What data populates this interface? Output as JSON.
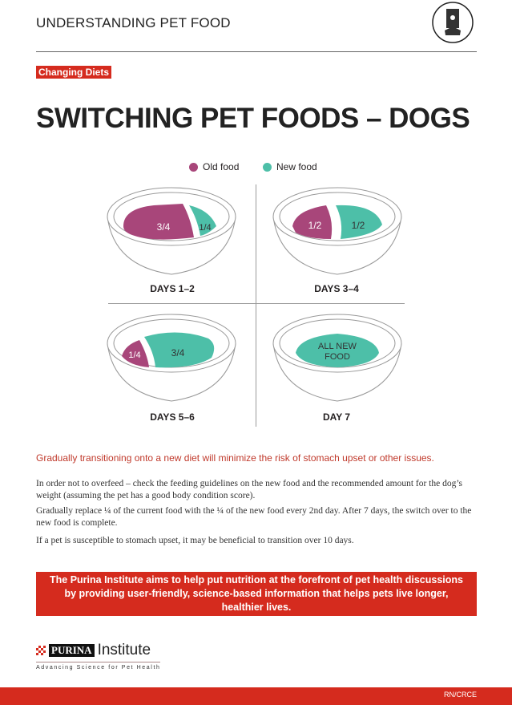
{
  "header": {
    "title": "UNDERSTANDING PET FOOD",
    "icon": "pet-food-bag-icon"
  },
  "tag": "Changing Diets",
  "title": "SWITCHING PET FOODS – DOGS",
  "legend": {
    "old": "Old food",
    "new": "New food",
    "old_color": "#a8467a",
    "new_color": "#4dbfa8"
  },
  "bowls": [
    {
      "label": "DAYS 1–2",
      "old": "3/4",
      "new": "1/4"
    },
    {
      "label": "DAYS 3–4",
      "old": "1/2",
      "new": "1/2"
    },
    {
      "label": "DAYS 5–6",
      "old": "1/4",
      "new": "3/4"
    },
    {
      "label": "DAY 7",
      "new_line1": "ALL NEW",
      "new_line2": "FOOD"
    }
  ],
  "lead": "Gradually transitioning onto a new diet will minimize the risk of stomach upset or other issues.",
  "paragraphs": [
    "In order not to overfeed – check the feeding guidelines on the new food and the recommended amount for the dog’s weight (assuming the pet has a good body condition score).",
    "Gradually replace ¼ of the current food with the ¼ of the new food every 2nd day. After 7 days, the switch over to the new food is complete.",
    "If a pet is susceptible to stomach upset, it may be beneficial to transition over 10 days."
  ],
  "callout": "The Purina Institute aims to help put nutrition at the forefront of pet health discussions by providing user-friendly, science-based information that helps pets live longer, healthier lives.",
  "logo": {
    "brand": "PURINA",
    "name": "Institute",
    "tagline": "Advancing Science for Pet Health"
  },
  "footer": {
    "code": "RN/CRCE"
  },
  "brand_color": "#d52b1e"
}
